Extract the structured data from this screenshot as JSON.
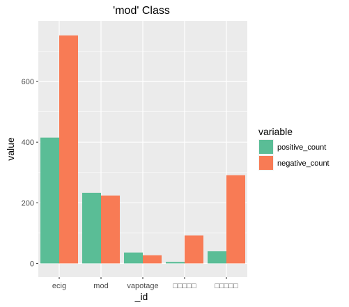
{
  "chart_data": {
    "type": "bar",
    "title": "'mod' Class",
    "xlabel": "_id",
    "ylabel": "value",
    "categories": [
      "ecig",
      "mod",
      "vapotage",
      "□□□□□",
      "□□□□□"
    ],
    "series": [
      {
        "name": "positive_count",
        "color": "#5ABD96",
        "values": [
          415,
          233,
          36,
          5,
          40
        ]
      },
      {
        "name": "negative_count",
        "color": "#F87B55",
        "values": [
          752,
          224,
          27,
          92,
          291
        ]
      }
    ],
    "ylim": [
      -45,
      800
    ],
    "yticks": [
      0,
      200,
      400,
      600
    ],
    "ytick_labels": [
      "0",
      "200",
      "400",
      "600"
    ],
    "grid": true,
    "legend": {
      "title": "variable",
      "position": "right"
    },
    "panel_color": "#EBEBEB",
    "grid_color": "#FFFFFF"
  }
}
